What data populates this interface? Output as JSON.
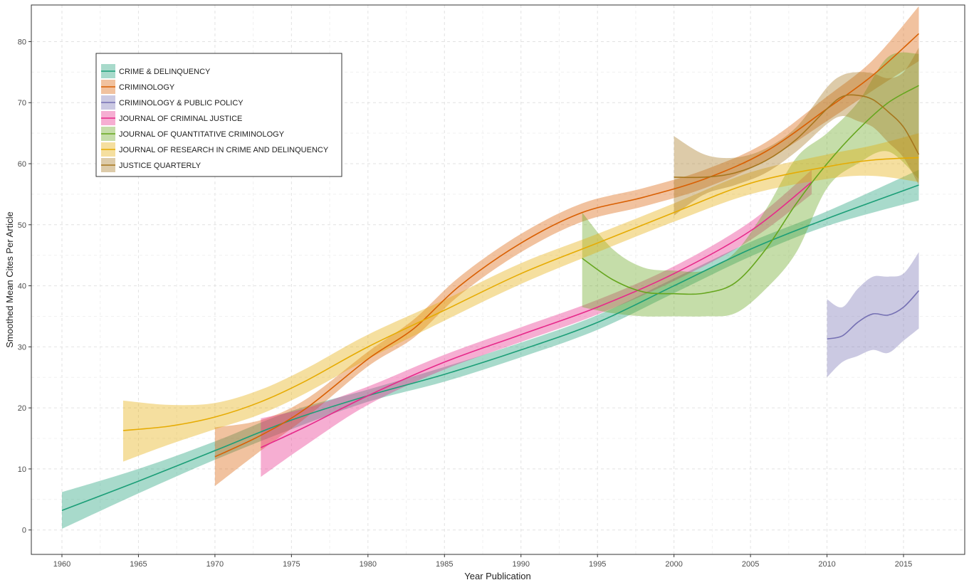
{
  "chart_data": {
    "type": "line",
    "title": "",
    "xlabel": "Year Publication",
    "ylabel": "Smoothed Mean Cites Per Article",
    "xlim": [
      1958,
      2019
    ],
    "ylim": [
      -4,
      86
    ],
    "xticks": [
      1960,
      1965,
      1970,
      1975,
      1980,
      1985,
      1990,
      1995,
      2000,
      2005,
      2010,
      2015
    ],
    "yticks": [
      0,
      10,
      20,
      30,
      40,
      50,
      60,
      70,
      80
    ],
    "grid": true,
    "legend_position": "top-left",
    "series": [
      {
        "name": "CRIME & DELINQUENCY",
        "color": "#1b9e77",
        "x": [
          1960,
          1965,
          1970,
          1975,
          1980,
          1985,
          1990,
          1995,
          2000,
          2005,
          2010,
          2016
        ],
        "y": [
          3.2,
          8.0,
          13.0,
          18.0,
          22.0,
          25.5,
          29.5,
          34.0,
          40.0,
          46.0,
          51.0,
          56.5
        ],
        "lower": [
          0.2,
          6.0,
          11.5,
          16.5,
          21.0,
          24.3,
          28.3,
          32.8,
          38.8,
          44.8,
          49.8,
          54.0
        ],
        "upper": [
          6.2,
          10.0,
          14.5,
          19.5,
          23.0,
          26.7,
          30.7,
          35.2,
          41.2,
          47.2,
          52.2,
          59.0
        ]
      },
      {
        "name": "CRIMINOLOGY",
        "color": "#d95f02",
        "x": [
          1970,
          1973,
          1976,
          1980,
          1983,
          1986,
          1990,
          1994,
          1998,
          2002,
          2006,
          2010,
          2013,
          2016
        ],
        "y": [
          12.0,
          15.5,
          20.0,
          28.0,
          33.0,
          40.0,
          47.0,
          52.0,
          54.5,
          57.5,
          62.0,
          69.0,
          74.5,
          81.3
        ],
        "lower": [
          7.2,
          13.0,
          18.5,
          26.8,
          31.5,
          38.5,
          45.5,
          50.5,
          53.0,
          56.0,
          60.5,
          67.0,
          72.0,
          76.8
        ],
        "upper": [
          16.8,
          18.0,
          21.5,
          29.2,
          34.5,
          41.5,
          48.5,
          53.5,
          56.0,
          59.0,
          63.5,
          71.0,
          77.0,
          85.8
        ]
      },
      {
        "name": "CRIMINOLOGY & PUBLIC POLICY",
        "color": "#7570b3",
        "x": [
          2010,
          2011,
          2012,
          2013,
          2014,
          2015,
          2016
        ],
        "y": [
          31.3,
          31.8,
          34.0,
          35.4,
          35.2,
          36.5,
          39.2
        ],
        "lower": [
          25.0,
          27.5,
          28.5,
          29.5,
          29.0,
          31.0,
          33.0
        ],
        "upper": [
          37.8,
          36.5,
          39.5,
          41.5,
          41.5,
          42.0,
          45.5
        ]
      },
      {
        "name": "JOURNAL OF CRIMINAL JUSTICE",
        "color": "#e7298a",
        "x": [
          1973,
          1976,
          1980,
          1985,
          1990,
          1995,
          2000,
          2005,
          2009
        ],
        "y": [
          13.5,
          17.0,
          22.0,
          27.5,
          32.0,
          36.5,
          42.0,
          49.0,
          57.0
        ],
        "lower": [
          8.7,
          14.0,
          20.5,
          26.3,
          30.8,
          35.3,
          40.8,
          47.5,
          55.0
        ],
        "upper": [
          18.3,
          20.0,
          23.5,
          28.7,
          33.2,
          37.7,
          43.2,
          50.5,
          59.0
        ]
      },
      {
        "name": "JOURNAL OF QUANTITATIVE CRIMINOLOGY",
        "color": "#66a61e",
        "x": [
          1994,
          1996,
          1998,
          2000,
          2002,
          2004,
          2006,
          2008,
          2010,
          2012,
          2014,
          2016
        ],
        "y": [
          44.5,
          41.0,
          39.0,
          38.7,
          38.8,
          40.5,
          46.0,
          53.5,
          60.0,
          65.5,
          70.0,
          72.8
        ],
        "lower": [
          36.5,
          35.5,
          35.0,
          35.0,
          35.0,
          35.5,
          39.5,
          45.5,
          56.0,
          60.0,
          62.0,
          57.5
        ],
        "upper": [
          52.0,
          46.0,
          43.0,
          42.5,
          42.5,
          45.5,
          52.5,
          61.0,
          65.0,
          70.0,
          77.5,
          78.0
        ]
      },
      {
        "name": "JOURNAL OF RESEARCH IN CRIME AND DELINQUENCY",
        "color": "#e6ab02",
        "x": [
          1964,
          1967,
          1970,
          1973,
          1976,
          1980,
          1985,
          1990,
          1995,
          2000,
          2005,
          2010,
          2013,
          2016
        ],
        "y": [
          16.3,
          17.0,
          18.5,
          21.0,
          24.5,
          30.0,
          36.0,
          42.0,
          47.0,
          52.0,
          56.8,
          59.5,
          60.6,
          61.0
        ],
        "lower": [
          11.2,
          14.0,
          16.5,
          19.0,
          22.5,
          28.0,
          34.3,
          40.3,
          45.5,
          50.5,
          55.0,
          57.5,
          58.0,
          57.0
        ],
        "upper": [
          21.2,
          20.5,
          20.8,
          23.0,
          26.5,
          32.0,
          37.7,
          43.7,
          48.5,
          53.5,
          58.6,
          61.5,
          63.0,
          65.0
        ]
      },
      {
        "name": "JUSTICE QUARTERLY",
        "color": "#a6761d",
        "x": [
          2000,
          2002,
          2004,
          2006,
          2008,
          2010,
          2011,
          2012,
          2013,
          2014,
          2015,
          2016
        ],
        "y": [
          57.8,
          57.8,
          58.5,
          60.5,
          64.0,
          69.0,
          71.0,
          71.2,
          70.5,
          68.5,
          66.0,
          61.5
        ],
        "lower": [
          51.5,
          55.0,
          56.5,
          58.5,
          62.0,
          66.5,
          67.8,
          67.0,
          66.0,
          63.5,
          61.0,
          56.5
        ],
        "upper": [
          64.5,
          61.5,
          61.0,
          62.5,
          66.0,
          72.5,
          74.5,
          75.0,
          74.8,
          74.0,
          75.0,
          79.0
        ]
      }
    ]
  }
}
